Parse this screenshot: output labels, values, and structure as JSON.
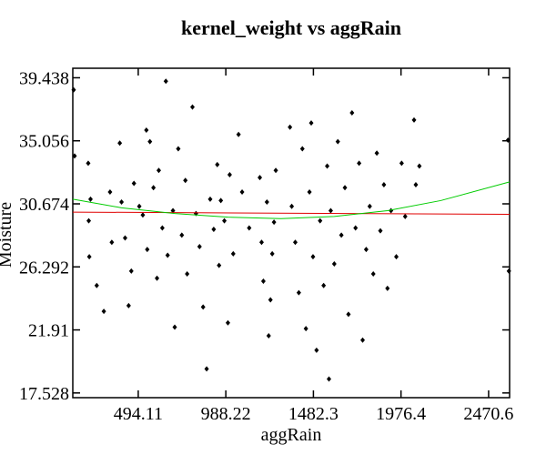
{
  "chart_data": {
    "type": "scatter",
    "title": "kernel_weight vs aggRain",
    "x_label": "aggRain",
    "y_label": "Moisture",
    "xlim": [
      125,
      2589
    ],
    "ylim": [
      17.2,
      40.1
    ],
    "xticks": [
      494.11,
      988.22,
      1482.3,
      1976.4,
      2470.6
    ],
    "yticks": [
      17.528,
      21.91,
      26.292,
      30.674,
      35.056,
      39.438
    ],
    "point_color": "#000000",
    "x": [
      130,
      135,
      212,
      215,
      218,
      225,
      260,
      300,
      335,
      345,
      390,
      400,
      420,
      440,
      455,
      470,
      500,
      520,
      540,
      545,
      560,
      580,
      600,
      610,
      630,
      650,
      660,
      690,
      700,
      720,
      740,
      760,
      770,
      800,
      820,
      840,
      860,
      880,
      900,
      920,
      940,
      950,
      960,
      980,
      1000,
      1010,
      1030,
      1060,
      1080,
      1120,
      1180,
      1190,
      1200,
      1220,
      1230,
      1240,
      1250,
      1260,
      1270,
      1350,
      1360,
      1380,
      1400,
      1420,
      1440,
      1460,
      1470,
      1480,
      1500,
      1520,
      1540,
      1560,
      1570,
      1580,
      1600,
      1620,
      1640,
      1660,
      1680,
      1700,
      1720,
      1740,
      1760,
      1780,
      1800,
      1820,
      1840,
      1860,
      1880,
      1900,
      1920,
      1950,
      1980,
      2000,
      2050,
      2060,
      2080,
      2580,
      2585
    ],
    "y": [
      38.6,
      34.0,
      33.5,
      29.5,
      27.0,
      31.0,
      25.0,
      23.2,
      31.5,
      28.0,
      34.9,
      30.8,
      28.3,
      23.6,
      26.0,
      32.1,
      30.5,
      29.9,
      35.8,
      27.5,
      35.0,
      31.8,
      25.5,
      33.0,
      29.0,
      39.2,
      27.1,
      30.2,
      22.1,
      34.5,
      28.5,
      32.3,
      25.8,
      37.4,
      30.0,
      27.7,
      23.5,
      19.2,
      31.0,
      28.9,
      33.4,
      26.4,
      30.9,
      29.5,
      22.4,
      32.7,
      27.2,
      35.5,
      31.5,
      29.0,
      32.5,
      28.0,
      25.3,
      30.8,
      21.5,
      24.0,
      27.2,
      29.4,
      33.0,
      36.0,
      30.5,
      28.0,
      24.5,
      34.5,
      22.0,
      31.5,
      36.3,
      27.0,
      20.5,
      29.5,
      25.0,
      33.3,
      18.5,
      30.2,
      26.5,
      35.0,
      28.5,
      31.8,
      23.0,
      37.0,
      29.0,
      33.5,
      21.2,
      27.5,
      30.5,
      25.8,
      34.2,
      28.8,
      32.0,
      24.8,
      30.2,
      27.0,
      33.5,
      29.8,
      36.5,
      32.0,
      33.3,
      35.1,
      26.0
    ],
    "fits": [
      {
        "color": "#e00000",
        "x": [
          125,
          2589
        ],
        "y": [
          30.1,
          29.95
        ]
      },
      {
        "color": "#00cc00",
        "x": [
          125,
          400,
          700,
          1000,
          1300,
          1600,
          1900,
          2200,
          2589
        ],
        "y": [
          31.0,
          30.4,
          30.0,
          29.75,
          29.65,
          29.8,
          30.2,
          30.9,
          32.2
        ]
      }
    ]
  }
}
